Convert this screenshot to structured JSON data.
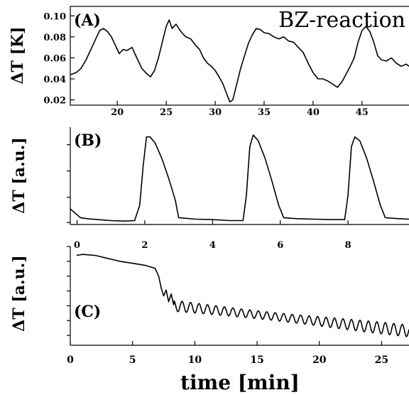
{
  "chart_data": [
    {
      "type": "line",
      "panel_label": "(A)",
      "title": "BZ-reaction",
      "ylabel": "ΔT [K]",
      "xlim": [
        15.2,
        49.8
      ],
      "ylim": [
        0.015,
        0.109
      ],
      "x_ticks": [
        20,
        25,
        30,
        35,
        40,
        45
      ],
      "y_ticks": [
        0.02,
        0.04,
        0.06,
        0.08,
        0.1
      ],
      "tick_labels_x": [
        "20",
        "25",
        "30",
        "35",
        "40",
        "45"
      ],
      "tick_labels_y": [
        "0.02",
        "0.04",
        "0.06",
        "0.08",
        "0.10"
      ],
      "series": [
        {
          "x": [
            15.2,
            15.8,
            16.3,
            16.8,
            17.3,
            17.8,
            18.2,
            18.6,
            19.0,
            19.4,
            19.8,
            20.2,
            20.6,
            21.0,
            21.5,
            22.0,
            22.5,
            23.0,
            23.4,
            23.8,
            24.2,
            24.6,
            25.0,
            25.3,
            25.6,
            26.0,
            26.5,
            27.0,
            27.5,
            28.0,
            28.4,
            28.8,
            29.2,
            29.6,
            30.0,
            30.4,
            30.8,
            31.2,
            31.5,
            31.8,
            32.2,
            32.6,
            33.0,
            33.4,
            33.8,
            34.2,
            34.6,
            35.0,
            35.5,
            36.0,
            36.5,
            37.0,
            37.5,
            38.0,
            38.5,
            39.0,
            39.5,
            40.0,
            40.5,
            41.0,
            41.5,
            42.0,
            42.5,
            43.0,
            43.4,
            43.8,
            44.2,
            44.6,
            45.0,
            45.4,
            45.8,
            46.2,
            46.6,
            47.0,
            47.5,
            48.0,
            48.5,
            49.0,
            49.5,
            49.8
          ],
          "y": [
            0.044,
            0.046,
            0.05,
            0.058,
            0.068,
            0.078,
            0.086,
            0.088,
            0.085,
            0.08,
            0.072,
            0.064,
            0.068,
            0.067,
            0.07,
            0.06,
            0.05,
            0.045,
            0.042,
            0.048,
            0.06,
            0.075,
            0.09,
            0.096,
            0.088,
            0.092,
            0.085,
            0.08,
            0.078,
            0.072,
            0.068,
            0.06,
            0.055,
            0.052,
            0.048,
            0.042,
            0.035,
            0.025,
            0.018,
            0.02,
            0.035,
            0.05,
            0.062,
            0.074,
            0.082,
            0.088,
            0.087,
            0.084,
            0.083,
            0.08,
            0.078,
            0.08,
            0.076,
            0.075,
            0.07,
            0.065,
            0.055,
            0.046,
            0.04,
            0.04,
            0.038,
            0.035,
            0.032,
            0.038,
            0.045,
            0.052,
            0.06,
            0.075,
            0.086,
            0.09,
            0.085,
            0.075,
            0.062,
            0.058,
            0.057,
            0.06,
            0.055,
            0.052,
            0.054,
            0.052
          ]
        }
      ]
    },
    {
      "type": "line",
      "panel_label": "(B)",
      "ylabel": "ΔT [a.u.]",
      "xlim": [
        -0.2,
        9.8
      ],
      "ylim": [
        0,
        1
      ],
      "x_ticks": [
        0,
        2,
        4,
        6,
        8
      ],
      "tick_labels_x": [
        "0",
        "2",
        "4",
        "6",
        "8"
      ],
      "series": [
        {
          "x": [
            -0.2,
            0.0,
            0.1,
            0.3,
            0.6,
            1.0,
            1.4,
            1.7,
            1.85,
            1.95,
            2.05,
            2.15,
            2.3,
            2.5,
            2.7,
            2.9,
            3.0,
            3.5,
            4.0,
            4.5,
            4.9,
            5.0,
            5.1,
            5.2,
            5.35,
            5.55,
            5.75,
            5.95,
            6.1,
            6.5,
            7.0,
            7.5,
            7.9,
            8.0,
            8.1,
            8.2,
            8.35,
            8.55,
            8.75,
            8.95,
            9.1,
            9.5,
            9.8
          ],
          "y": [
            0.16,
            0.1,
            0.07,
            0.06,
            0.05,
            0.04,
            0.035,
            0.04,
            0.2,
            0.6,
            0.9,
            0.9,
            0.84,
            0.68,
            0.48,
            0.25,
            0.07,
            0.055,
            0.05,
            0.04,
            0.04,
            0.3,
            0.8,
            0.92,
            0.86,
            0.68,
            0.45,
            0.2,
            0.07,
            0.06,
            0.055,
            0.05,
            0.05,
            0.3,
            0.8,
            0.9,
            0.86,
            0.68,
            0.45,
            0.2,
            0.07,
            0.06,
            0.055
          ]
        }
      ]
    },
    {
      "type": "line",
      "panel_label": "(C)",
      "ylabel": "ΔT [a.u.]",
      "xlabel": "time [min]",
      "xlim": [
        0,
        27.2
      ],
      "ylim": [
        0,
        1
      ],
      "x_ticks": [
        0,
        5,
        10,
        15,
        20,
        25
      ],
      "tick_labels_x": [
        "0",
        "5",
        "10",
        "15",
        "20",
        "25"
      ],
      "series": [
        {
          "x": [
            0.5,
            1,
            2,
            3,
            4,
            5,
            6,
            6.8,
            7.1,
            7.3,
            7.5,
            7.7,
            7.9,
            8.1,
            8.3
          ],
          "y": [
            0.91,
            0.92,
            0.91,
            0.88,
            0.85,
            0.83,
            0.81,
            0.78,
            0.7,
            0.58,
            0.5,
            0.56,
            0.44,
            0.52,
            0.41
          ]
        }
      ]
    }
  ]
}
